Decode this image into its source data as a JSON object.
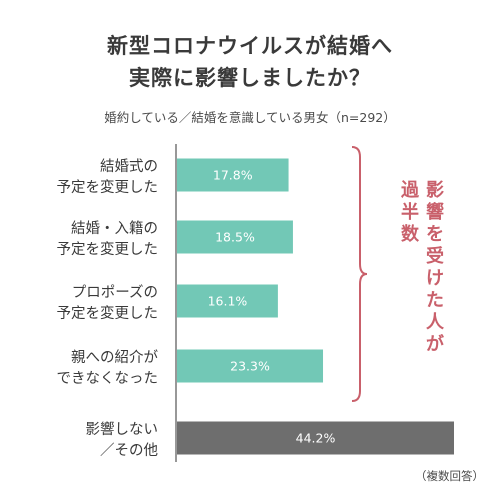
{
  "header": {
    "title_line1": "新型コロナウイルスが結婚へ",
    "title_line2": "実際に影響しましたか？",
    "subtitle": "婚約している／結婚を意識している男女（n=292）"
  },
  "footnote": "（複数回答）",
  "bracket_label": "影響を受けた人が過半数",
  "bracket_columns": [
    "影響を受けた人が",
    "過半数"
  ],
  "colors": {
    "teal": "#72c8b6",
    "gray": "#6e6e6e",
    "accent": "#c9606b",
    "text": "#3a3a3a"
  },
  "chart_data": {
    "type": "bar",
    "orientation": "horizontal",
    "unit": "%",
    "xlim": [
      0,
      50
    ],
    "categories": [
      [
        "結婚式の",
        "予定を変更した"
      ],
      [
        "結婚・入籍の",
        "予定を変更した"
      ],
      [
        "プロポーズの",
        "予定を変更した"
      ],
      [
        "親への紹介が",
        "できなくなった"
      ],
      [
        "影響しない",
        "／その他"
      ]
    ],
    "values": [
      17.8,
      18.5,
      16.1,
      23.3,
      44.2
    ],
    "value_labels": [
      "17.8%",
      "18.5%",
      "16.1%",
      "23.3%",
      "44.2%"
    ],
    "bar_colors": [
      "#72c8b6",
      "#72c8b6",
      "#72c8b6",
      "#72c8b6",
      "#6e6e6e"
    ]
  }
}
